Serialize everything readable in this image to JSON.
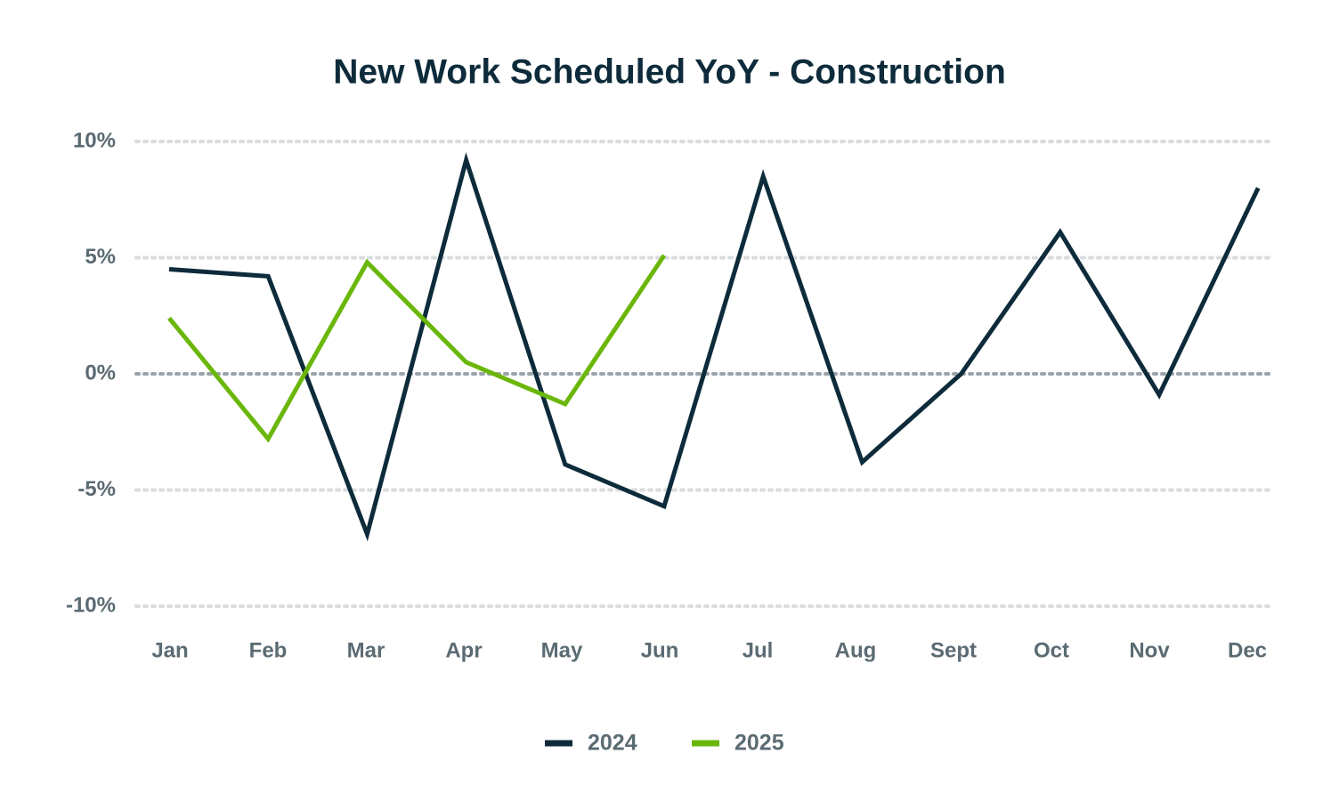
{
  "chart_data": {
    "type": "line",
    "title": "New Work Scheduled YoY - Construction",
    "categories": [
      "Jan",
      "Feb",
      "Mar",
      "Apr",
      "May",
      "Jun",
      "Jul",
      "Aug",
      "Sept",
      "Oct",
      "Nov",
      "Dec"
    ],
    "series": [
      {
        "name": "2024",
        "color": "#0d2b3a",
        "values": [
          4.5,
          4.2,
          -6.9,
          9.2,
          -3.9,
          -5.7,
          8.5,
          -3.8,
          0,
          6.1,
          -0.9,
          8.0
        ]
      },
      {
        "name": "2025",
        "color": "#6ab70a",
        "values": [
          2.4,
          -2.8,
          4.8,
          0.5,
          -1.3,
          5.1,
          null,
          null,
          null,
          null,
          null,
          null
        ]
      }
    ],
    "ylim": [
      -10,
      10
    ],
    "yticks": [
      {
        "value": -10,
        "label": "-10%"
      },
      {
        "value": -5,
        "label": "-5%"
      },
      {
        "value": 0,
        "label": "0%"
      },
      {
        "value": 5,
        "label": "5%"
      },
      {
        "value": 10,
        "label": "10%"
      }
    ],
    "grid": true,
    "legend": "bottom"
  }
}
